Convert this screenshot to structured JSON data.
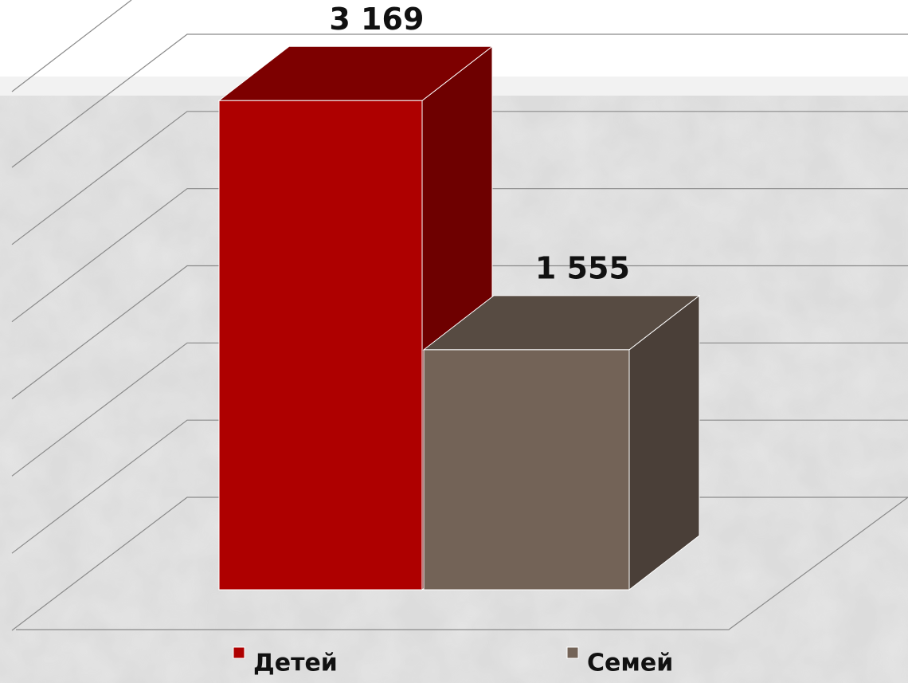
{
  "chart_data": {
    "type": "bar3d",
    "categories": [
      null
    ],
    "series": [
      {
        "name": "Детей",
        "color": "#ae0000",
        "values": [
          3169
        ],
        "value_labels": [
          "3 169"
        ]
      },
      {
        "name": "Семей",
        "color": "#736357",
        "values": [
          1555
        ],
        "value_labels": [
          "1 555"
        ]
      }
    ],
    "ylim": [
      0,
      3500
    ],
    "yticks": [
      0,
      500,
      1000,
      1500,
      2000,
      2500,
      3000
    ],
    "grid": true,
    "legend": "bottom"
  }
}
